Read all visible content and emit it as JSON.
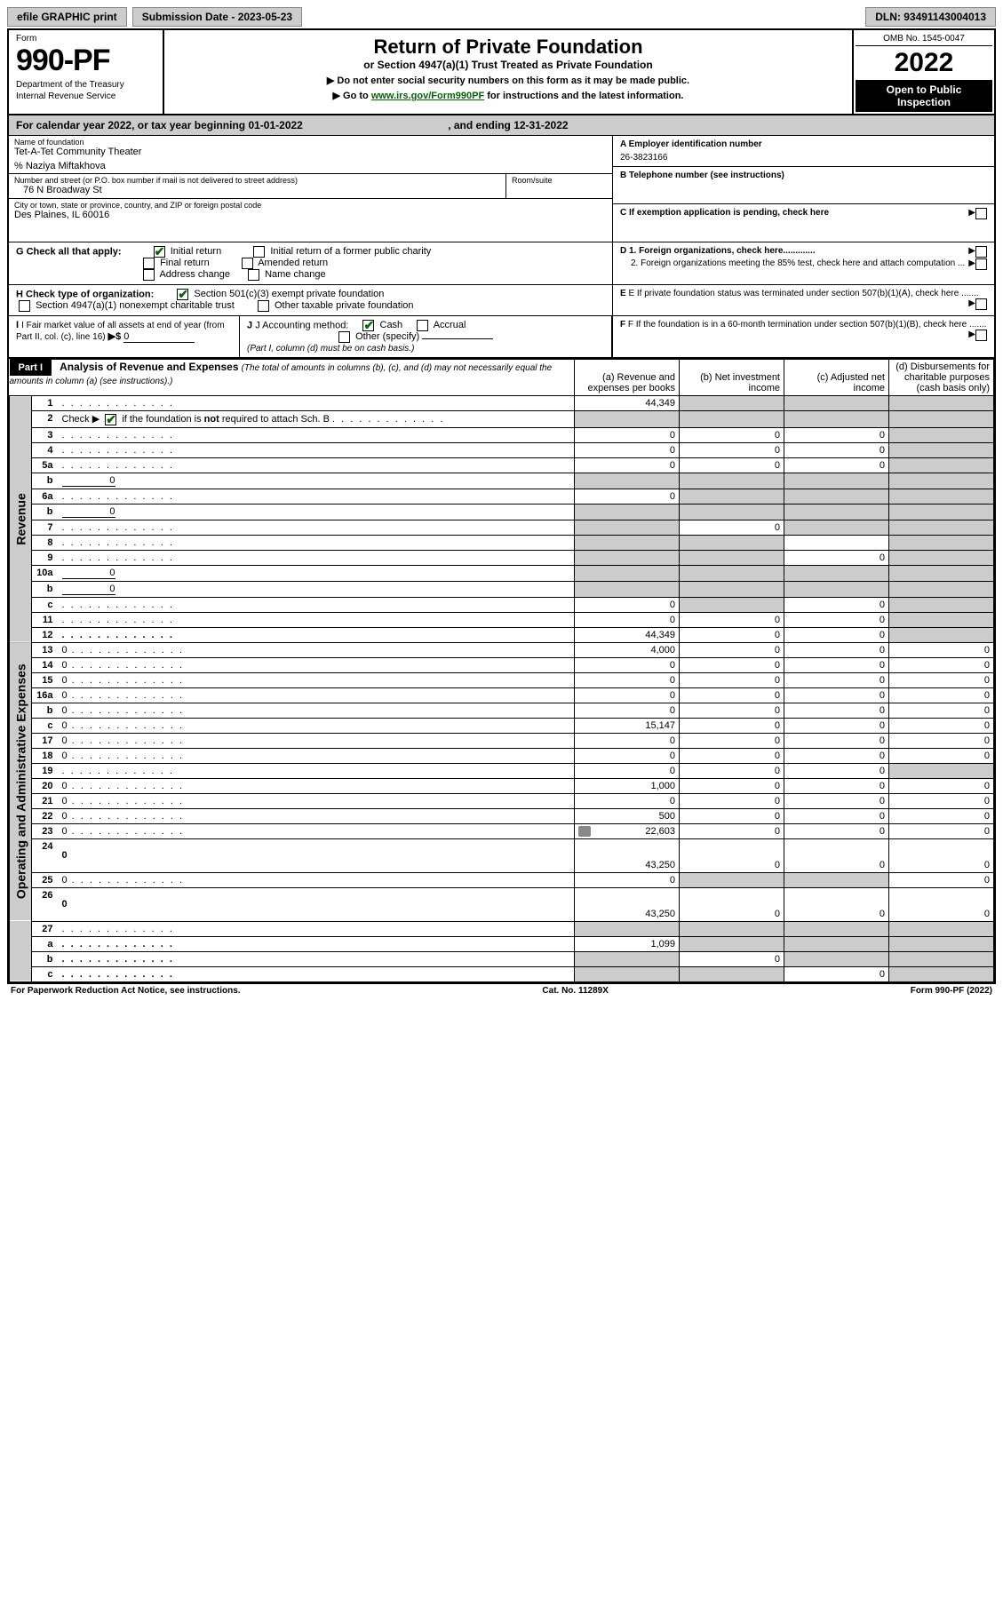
{
  "topbar": {
    "efile": "efile GRAPHIC print",
    "subdate": "Submission Date - 2023-05-23",
    "dln": "DLN: 93491143004013"
  },
  "header": {
    "form_label": "Form",
    "form_num": "990-PF",
    "dept1": "Department of the Treasury",
    "dept2": "Internal Revenue Service",
    "title": "Return of Private Foundation",
    "subtitle": "or Section 4947(a)(1) Trust Treated as Private Foundation",
    "note1": "▶ Do not enter social security numbers on this form as it may be made public.",
    "note2_pre": "▶ Go to ",
    "note2_link": "www.irs.gov/Form990PF",
    "note2_post": " for instructions and the latest information.",
    "omb": "OMB No. 1545-0047",
    "year": "2022",
    "openpub1": "Open to Public",
    "openpub2": "Inspection"
  },
  "calyr": {
    "text_pre": "For calendar year 2022, or tax year beginning ",
    "begin": "01-01-2022",
    "mid": " , and ending ",
    "end": "12-31-2022"
  },
  "info": {
    "name_lbl": "Name of foundation",
    "name_val": "Tet-A-Tet Community Theater",
    "care_of": "% Naziya Miftakhova",
    "addr_lbl": "Number and street (or P.O. box number if mail is not delivered to street address)",
    "addr_val": "76 N Broadway St",
    "room_lbl": "Room/suite",
    "city_lbl": "City or town, state or province, country, and ZIP or foreign postal code",
    "city_val": "Des Plaines, IL  60016",
    "a_lbl": "A Employer identification number",
    "a_val": "26-3823166",
    "b_lbl": "B Telephone number (see instructions)",
    "c_lbl": "C If exemption application is pending, check here",
    "d1": "D 1. Foreign organizations, check here.............",
    "d2": "2. Foreign organizations meeting the 85% test, check here and attach computation ...",
    "e": "E  If private foundation status was terminated under section 507(b)(1)(A), check here .......",
    "f": "F  If the foundation is in a 60-month termination under section 507(b)(1)(B), check here .......",
    "g_label": "G Check all that apply:",
    "g_opts": [
      "Initial return",
      "Initial return of a former public charity",
      "Final return",
      "Amended return",
      "Address change",
      "Name change"
    ],
    "h_label": "H Check type of organization:",
    "h_opts": [
      "Section 501(c)(3) exempt private foundation",
      "Section 4947(a)(1) nonexempt charitable trust",
      "Other taxable private foundation"
    ],
    "i_label": "I Fair market value of all assets at end of year (from Part II, col. (c), line 16)",
    "i_val": "0",
    "j_label": "J Accounting method:",
    "j_opts": [
      "Cash",
      "Accrual",
      "Other (specify)"
    ],
    "j_note": "(Part I, column (d) must be on cash basis.)"
  },
  "part1": {
    "label": "Part I",
    "title": "Analysis of Revenue and Expenses",
    "title_note": "(The total of amounts in columns (b), (c), and (d) may not necessarily equal the amounts in column (a) (see instructions).)",
    "col_a": "(a) Revenue and expenses per books",
    "col_b": "(b) Net investment income",
    "col_c": "(c) Adjusted net income",
    "col_d": "(d) Disbursements for charitable purposes (cash basis only)",
    "side_rev": "Revenue",
    "side_exp": "Operating and Administrative Expenses"
  },
  "rows": [
    {
      "n": "1",
      "d": "",
      "a": "44,349",
      "b": "",
      "c": "",
      "sb": true,
      "sc": true,
      "sd": true
    },
    {
      "n": "2",
      "d": "",
      "a": "",
      "b": "",
      "c": "",
      "sa": true,
      "sb": true,
      "sc": true,
      "sd": true,
      "raw": true
    },
    {
      "n": "3",
      "d": "",
      "a": "0",
      "b": "0",
      "c": "0",
      "sd": true
    },
    {
      "n": "4",
      "d": "",
      "a": "0",
      "b": "0",
      "c": "0",
      "sd": true
    },
    {
      "n": "5a",
      "d": "",
      "a": "0",
      "b": "0",
      "c": "0",
      "sd": true
    },
    {
      "n": "b",
      "d": "",
      "a": "",
      "b": "",
      "c": "",
      "sa": true,
      "sb": true,
      "sc": true,
      "sd": true,
      "inline": "0"
    },
    {
      "n": "6a",
      "d": "",
      "a": "0",
      "b": "",
      "c": "",
      "sb": true,
      "sc": true,
      "sd": true
    },
    {
      "n": "b",
      "d": "",
      "a": "",
      "b": "",
      "c": "",
      "sa": true,
      "sb": true,
      "sc": true,
      "sd": true,
      "inline": "0"
    },
    {
      "n": "7",
      "d": "",
      "a": "",
      "b": "0",
      "c": "",
      "sa": true,
      "sc": true,
      "sd": true
    },
    {
      "n": "8",
      "d": "",
      "a": "",
      "b": "",
      "c": "",
      "sa": true,
      "sb": true,
      "sd": true
    },
    {
      "n": "9",
      "d": "",
      "a": "",
      "b": "",
      "c": "0",
      "sa": true,
      "sb": true,
      "sd": true
    },
    {
      "n": "10a",
      "d": "",
      "a": "",
      "b": "",
      "c": "",
      "sa": true,
      "sb": true,
      "sc": true,
      "sd": true,
      "inline": "0"
    },
    {
      "n": "b",
      "d": "",
      "a": "",
      "b": "",
      "c": "",
      "sa": true,
      "sb": true,
      "sc": true,
      "sd": true,
      "inline": "0"
    },
    {
      "n": "c",
      "d": "",
      "a": "0",
      "b": "",
      "c": "0",
      "sb": true,
      "sd": true
    },
    {
      "n": "11",
      "d": "",
      "a": "0",
      "b": "0",
      "c": "0",
      "sd": true
    },
    {
      "n": "12",
      "d": "",
      "a": "44,349",
      "b": "0",
      "c": "0",
      "sd": true,
      "bold": true
    }
  ],
  "exp_rows": [
    {
      "n": "13",
      "d": "0",
      "a": "4,000",
      "b": "0",
      "c": "0"
    },
    {
      "n": "14",
      "d": "0",
      "a": "0",
      "b": "0",
      "c": "0"
    },
    {
      "n": "15",
      "d": "0",
      "a": "0",
      "b": "0",
      "c": "0"
    },
    {
      "n": "16a",
      "d": "0",
      "a": "0",
      "b": "0",
      "c": "0"
    },
    {
      "n": "b",
      "d": "0",
      "a": "0",
      "b": "0",
      "c": "0"
    },
    {
      "n": "c",
      "d": "0",
      "a": "15,147",
      "b": "0",
      "c": "0"
    },
    {
      "n": "17",
      "d": "0",
      "a": "0",
      "b": "0",
      "c": "0"
    },
    {
      "n": "18",
      "d": "0",
      "a": "0",
      "b": "0",
      "c": "0"
    },
    {
      "n": "19",
      "d": "",
      "a": "0",
      "b": "0",
      "c": "0",
      "sd": true
    },
    {
      "n": "20",
      "d": "0",
      "a": "1,000",
      "b": "0",
      "c": "0"
    },
    {
      "n": "21",
      "d": "0",
      "a": "0",
      "b": "0",
      "c": "0"
    },
    {
      "n": "22",
      "d": "0",
      "a": "500",
      "b": "0",
      "c": "0"
    },
    {
      "n": "23",
      "d": "0",
      "a": "22,603",
      "b": "0",
      "c": "0",
      "icon": true
    },
    {
      "n": "24",
      "d": "0",
      "a": "43,250",
      "b": "0",
      "c": "0",
      "bold": true,
      "tall": true
    },
    {
      "n": "25",
      "d": "0",
      "a": "0",
      "b": "",
      "c": "",
      "sb": true,
      "sc": true
    },
    {
      "n": "26",
      "d": "0",
      "a": "43,250",
      "b": "0",
      "c": "0",
      "bold": true,
      "tall": true
    }
  ],
  "bottom_rows": [
    {
      "n": "27",
      "d": "",
      "a": "",
      "b": "",
      "c": "",
      "sa": true,
      "sb": true,
      "sc": true,
      "sd": true
    },
    {
      "n": "a",
      "d": "",
      "a": "1,099",
      "b": "",
      "c": "",
      "sb": true,
      "sc": true,
      "sd": true,
      "bold": true
    },
    {
      "n": "b",
      "d": "",
      "a": "",
      "b": "0",
      "c": "",
      "sa": true,
      "sc": true,
      "sd": true,
      "bold": true
    },
    {
      "n": "c",
      "d": "",
      "a": "",
      "b": "",
      "c": "0",
      "sa": true,
      "sb": true,
      "sd": true,
      "bold": true
    }
  ],
  "footer": {
    "left": "For Paperwork Reduction Act Notice, see instructions.",
    "mid": "Cat. No. 11289X",
    "right": "Form 990-PF (2022)"
  }
}
